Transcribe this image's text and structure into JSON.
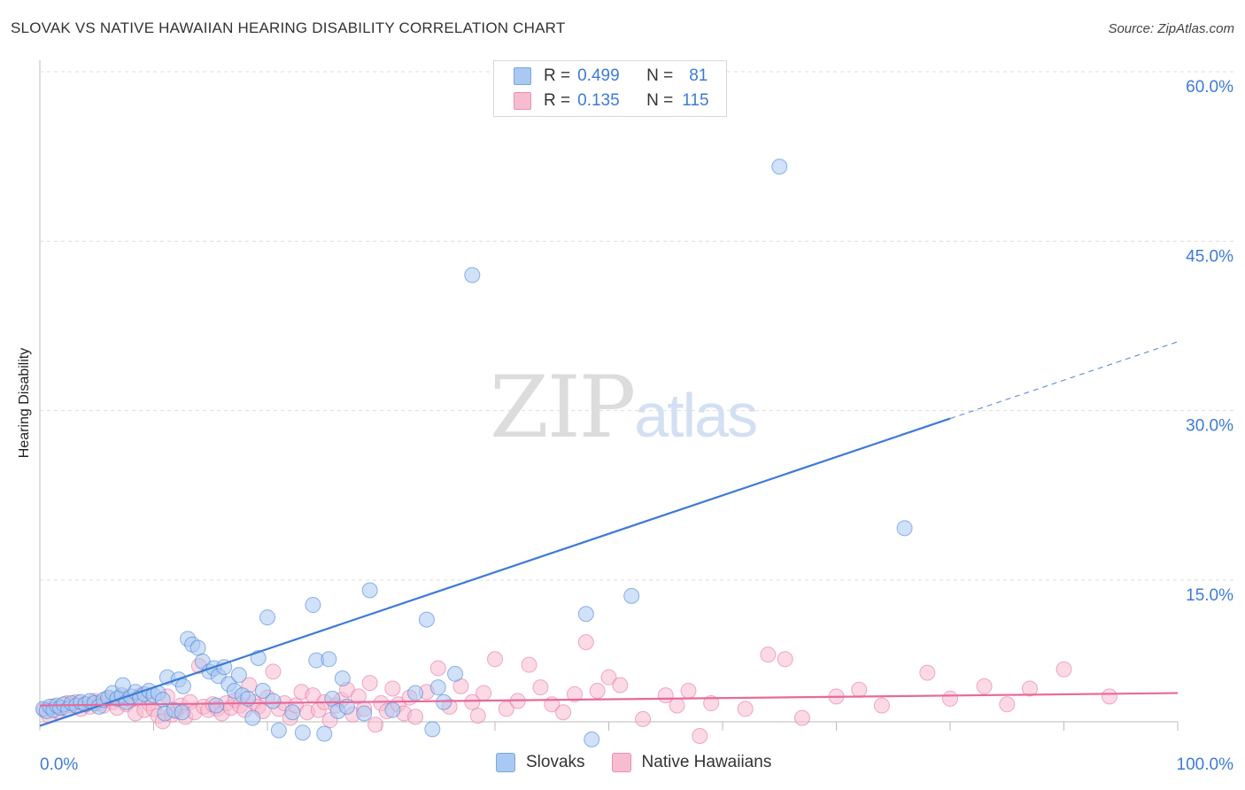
{
  "header": {
    "title": "SLOVAK VS NATIVE HAWAIIAN HEARING DISABILITY CORRELATION CHART",
    "source": "Source: ZipAtlas.com"
  },
  "watermark": {
    "zip": "ZIP",
    "atlas": "atlas"
  },
  "legend": {
    "rows": [
      {
        "r_label": "R = ",
        "r_value": "0.499",
        "n_label": "N = ",
        "n_value": "81",
        "color": "#a9c9f2"
      },
      {
        "r_label": "R = ",
        "r_value": "0.135",
        "n_label": "N = ",
        "n_value": "115",
        "color": "#f8bcd0"
      }
    ]
  },
  "bottom_legend": [
    {
      "label": "Slovaks",
      "color": "#a9c9f2"
    },
    {
      "label": "Native Hawaiians",
      "color": "#f8bcd0"
    }
  ],
  "chart_data": {
    "type": "scatter",
    "title": "SLOVAK VS NATIVE HAWAIIAN HEARING DISABILITY CORRELATION CHART",
    "xlabel": "",
    "ylabel": "Hearing Disability",
    "xlim": [
      0,
      100
    ],
    "ylim": [
      0,
      63
    ],
    "x_tick_labels": [
      "0.0%",
      "100.0%"
    ],
    "y_ticks": [
      15,
      30,
      45,
      60
    ],
    "y_tick_labels": [
      "15.0%",
      "30.0%",
      "45.0%",
      "60.0%"
    ],
    "grid": true,
    "colors": {
      "slovaks": "#3d7bd6",
      "slovaks_fill": "#a9c9f2",
      "hawaiians": "#e8699a",
      "hawaiians_fill": "#f8bcd0",
      "tick_text": "#3d7bd6"
    },
    "series": [
      {
        "name": "Slovaks",
        "r": 0.499,
        "n": 81,
        "trend": {
          "x0": 0,
          "y0": 2.1,
          "x1": 80,
          "y1": 29.3,
          "dash_to_x": 100,
          "dash_to_y": 36.1
        },
        "points": [
          [
            0.3,
            3.6
          ],
          [
            0.6,
            3.4
          ],
          [
            0.9,
            3.8
          ],
          [
            1.2,
            3.5
          ],
          [
            1.5,
            3.9
          ],
          [
            1.8,
            3.7
          ],
          [
            2.1,
            4.0
          ],
          [
            2.5,
            3.6
          ],
          [
            2.8,
            4.1
          ],
          [
            3.2,
            3.9
          ],
          [
            3.6,
            4.2
          ],
          [
            4.0,
            4.0
          ],
          [
            4.4,
            4.3
          ],
          [
            4.8,
            4.1
          ],
          [
            5.2,
            3.8
          ],
          [
            5.6,
            4.4
          ],
          [
            6.0,
            4.6
          ],
          [
            6.4,
            5.0
          ],
          [
            6.8,
            4.5
          ],
          [
            7.2,
            4.8
          ],
          [
            7.6,
            4.2
          ],
          [
            8.0,
            4.7
          ],
          [
            8.4,
            5.1
          ],
          [
            8.8,
            4.6
          ],
          [
            9.2,
            4.9
          ],
          [
            9.6,
            5.2
          ],
          [
            10.0,
            4.8
          ],
          [
            10.4,
            5.0
          ],
          [
            10.8,
            4.4
          ],
          [
            11.2,
            6.4
          ],
          [
            7.3,
            5.7
          ],
          [
            11.0,
            3.2
          ],
          [
            11.8,
            3.5
          ],
          [
            12.2,
            6.2
          ],
          [
            12.6,
            5.6
          ],
          [
            13.0,
            9.8
          ],
          [
            13.4,
            9.3
          ],
          [
            13.9,
            9.0
          ],
          [
            14.3,
            7.8
          ],
          [
            12.5,
            3.3
          ],
          [
            14.9,
            6.9
          ],
          [
            15.3,
            7.2
          ],
          [
            15.7,
            6.5
          ],
          [
            16.2,
            7.3
          ],
          [
            16.6,
            5.8
          ],
          [
            17.1,
            5.2
          ],
          [
            15.5,
            3.9
          ],
          [
            17.5,
            6.6
          ],
          [
            17.8,
            4.8
          ],
          [
            18.3,
            4.5
          ],
          [
            18.7,
            2.8
          ],
          [
            19.2,
            8.1
          ],
          [
            19.6,
            5.2
          ],
          [
            20.0,
            11.7
          ],
          [
            20.5,
            4.3
          ],
          [
            21.0,
            1.7
          ],
          [
            22.2,
            3.3
          ],
          [
            23.1,
            1.5
          ],
          [
            24.0,
            12.8
          ],
          [
            24.3,
            7.9
          ],
          [
            25.0,
            1.4
          ],
          [
            25.4,
            8.0
          ],
          [
            25.7,
            4.5
          ],
          [
            26.2,
            3.4
          ],
          [
            26.6,
            6.3
          ],
          [
            27.0,
            3.8
          ],
          [
            28.5,
            3.2
          ],
          [
            29.0,
            14.1
          ],
          [
            31.0,
            3.5
          ],
          [
            33.0,
            5.0
          ],
          [
            34.0,
            11.5
          ],
          [
            34.5,
            1.8
          ],
          [
            35.0,
            5.5
          ],
          [
            35.5,
            4.2
          ],
          [
            36.5,
            6.7
          ],
          [
            48.0,
            12.0
          ],
          [
            48.5,
            0.9
          ],
          [
            52.0,
            13.6
          ],
          [
            65.0,
            51.6
          ],
          [
            38.0,
            42.0
          ],
          [
            76.0,
            19.6
          ]
        ]
      },
      {
        "name": "Native Hawaiians",
        "r": 0.135,
        "n": 115,
        "trend": {
          "x0": 0,
          "y0": 3.9,
          "x1": 100,
          "y1": 5.0
        },
        "points": [
          [
            0.4,
            3.5
          ],
          [
            0.8,
            3.0
          ],
          [
            1.2,
            3.8
          ],
          [
            1.6,
            3.4
          ],
          [
            2.0,
            3.7
          ],
          [
            2.4,
            4.1
          ],
          [
            2.8,
            3.9
          ],
          [
            3.2,
            4.2
          ],
          [
            3.6,
            3.6
          ],
          [
            4.0,
            4.0
          ],
          [
            4.4,
            3.8
          ],
          [
            4.8,
            4.3
          ],
          [
            5.2,
            4.1
          ],
          [
            5.6,
            3.9
          ],
          [
            6.0,
            4.5
          ],
          [
            6.4,
            4.2
          ],
          [
            6.8,
            3.7
          ],
          [
            7.2,
            4.6
          ],
          [
            7.6,
            4.0
          ],
          [
            8.0,
            4.4
          ],
          [
            8.4,
            3.2
          ],
          [
            8.8,
            4.8
          ],
          [
            9.2,
            3.5
          ],
          [
            9.6,
            4.1
          ],
          [
            10.0,
            3.6
          ],
          [
            10.4,
            3.0
          ],
          [
            10.8,
            2.5
          ],
          [
            11.2,
            4.7
          ],
          [
            11.6,
            3.1
          ],
          [
            12.0,
            3.4
          ],
          [
            12.4,
            3.9
          ],
          [
            12.8,
            2.9
          ],
          [
            13.2,
            4.2
          ],
          [
            13.6,
            3.3
          ],
          [
            14.0,
            7.4
          ],
          [
            14.4,
            3.8
          ],
          [
            14.8,
            3.5
          ],
          [
            15.2,
            4.0
          ],
          [
            15.6,
            3.6
          ],
          [
            16.0,
            3.2
          ],
          [
            16.4,
            4.1
          ],
          [
            16.8,
            3.7
          ],
          [
            17.2,
            4.4
          ],
          [
            17.6,
            3.9
          ],
          [
            18.0,
            3.5
          ],
          [
            18.4,
            5.7
          ],
          [
            18.8,
            4.2
          ],
          [
            19.2,
            3.8
          ],
          [
            19.6,
            3.4
          ],
          [
            20.0,
            4.6
          ],
          [
            20.5,
            6.9
          ],
          [
            21.0,
            3.6
          ],
          [
            21.5,
            4.1
          ],
          [
            22.0,
            2.8
          ],
          [
            22.5,
            3.9
          ],
          [
            23.0,
            5.1
          ],
          [
            23.5,
            3.3
          ],
          [
            24.0,
            4.8
          ],
          [
            24.5,
            3.5
          ],
          [
            25.0,
            4.2
          ],
          [
            25.5,
            2.6
          ],
          [
            26.0,
            3.9
          ],
          [
            26.5,
            4.4
          ],
          [
            27.0,
            5.3
          ],
          [
            27.5,
            3.1
          ],
          [
            28.0,
            4.7
          ],
          [
            28.5,
            3.6
          ],
          [
            29.0,
            5.9
          ],
          [
            29.5,
            2.2
          ],
          [
            30.0,
            4.1
          ],
          [
            30.5,
            3.4
          ],
          [
            31.0,
            5.4
          ],
          [
            31.5,
            4.0
          ],
          [
            32.0,
            3.2
          ],
          [
            32.5,
            4.6
          ],
          [
            33.0,
            2.9
          ],
          [
            34.0,
            5.1
          ],
          [
            35.0,
            7.2
          ],
          [
            36.0,
            3.8
          ],
          [
            37.0,
            5.6
          ],
          [
            38.0,
            4.2
          ],
          [
            38.5,
            3.0
          ],
          [
            39.0,
            5.0
          ],
          [
            40.0,
            8.0
          ],
          [
            41.0,
            3.6
          ],
          [
            42.0,
            4.3
          ],
          [
            43.0,
            7.5
          ],
          [
            44.0,
            5.5
          ],
          [
            45.0,
            4.0
          ],
          [
            46.0,
            3.3
          ],
          [
            47.0,
            4.9
          ],
          [
            48.0,
            9.5
          ],
          [
            49.0,
            5.2
          ],
          [
            50.0,
            6.4
          ],
          [
            51.0,
            5.7
          ],
          [
            53.0,
            2.7
          ],
          [
            55.0,
            4.8
          ],
          [
            56.0,
            3.9
          ],
          [
            57.0,
            5.2
          ],
          [
            58.0,
            1.2
          ],
          [
            59.0,
            4.1
          ],
          [
            62.0,
            3.6
          ],
          [
            64.0,
            8.4
          ],
          [
            65.5,
            8.0
          ],
          [
            67.0,
            2.8
          ],
          [
            70.0,
            4.7
          ],
          [
            72.0,
            5.3
          ],
          [
            74.0,
            3.9
          ],
          [
            78.0,
            6.8
          ],
          [
            80.0,
            4.5
          ],
          [
            83.0,
            5.6
          ],
          [
            85.0,
            4.0
          ],
          [
            87.0,
            5.4
          ],
          [
            90.0,
            7.1
          ],
          [
            94.0,
            4.7
          ]
        ]
      }
    ]
  }
}
